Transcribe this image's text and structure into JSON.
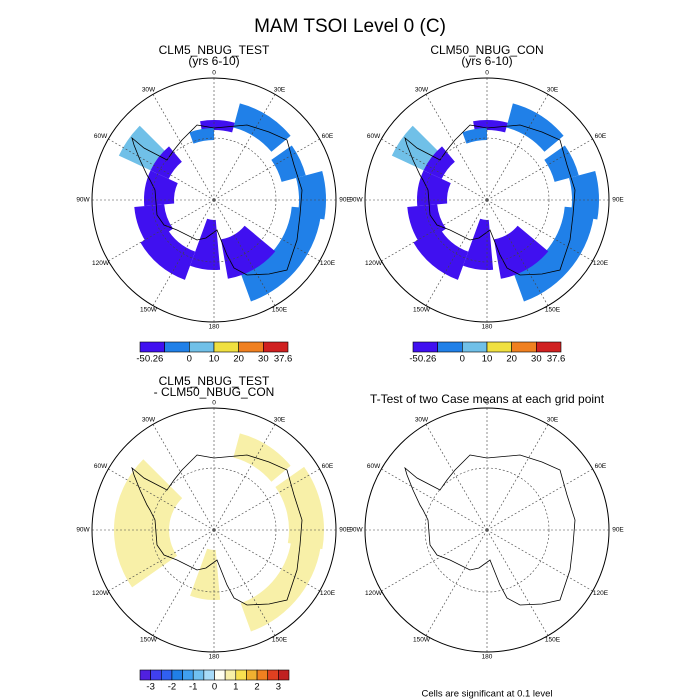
{
  "title": "MAM TSOI Level 0 (C)",
  "longitude_labels": [
    "0",
    "30E",
    "60E",
    "90E",
    "120E",
    "150E",
    "180",
    "150W",
    "120W",
    "90W",
    "60W",
    "30W"
  ],
  "panels": [
    {
      "title": "CLM5_NBUG_TEST",
      "subtitle": "(yrs 6-10)",
      "colorbar_labels": [
        "-50.26",
        "0",
        "10",
        "20",
        "30",
        "37.6"
      ]
    },
    {
      "title": "CLM50_NBUG_CON",
      "subtitle": "(yrs 6-10)",
      "colorbar_labels": [
        "-50.26",
        "0",
        "10",
        "20",
        "30",
        "37.6"
      ]
    },
    {
      "title": "CLM5_NBUG_TEST",
      "subtitle": "- CLM50_NBUG_CON",
      "colorbar_labels": [
        "-3",
        "-2",
        "-1",
        "0",
        "1",
        "2",
        "3"
      ]
    },
    {
      "title": "T-Test of two Case means at each grid point"
    }
  ],
  "footnote": "Cells are significant at 0.1 level"
}
